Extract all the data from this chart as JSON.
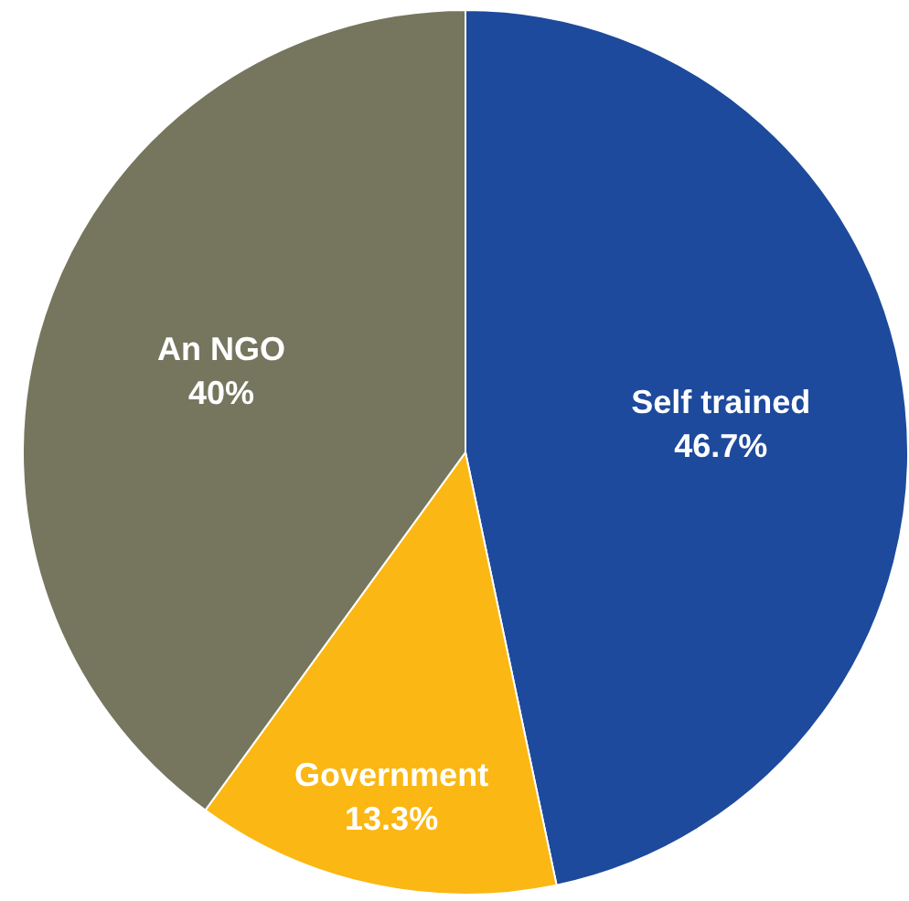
{
  "chart_data": {
    "type": "pie",
    "categories": [
      "Self trained",
      "Government",
      "An NGO"
    ],
    "values": [
      46.7,
      13.3,
      40
    ],
    "value_labels": [
      "46.7%",
      "13.3%",
      "40%"
    ],
    "colors": [
      "#1d4a9c",
      "#fbb713",
      "#76765f"
    ]
  }
}
